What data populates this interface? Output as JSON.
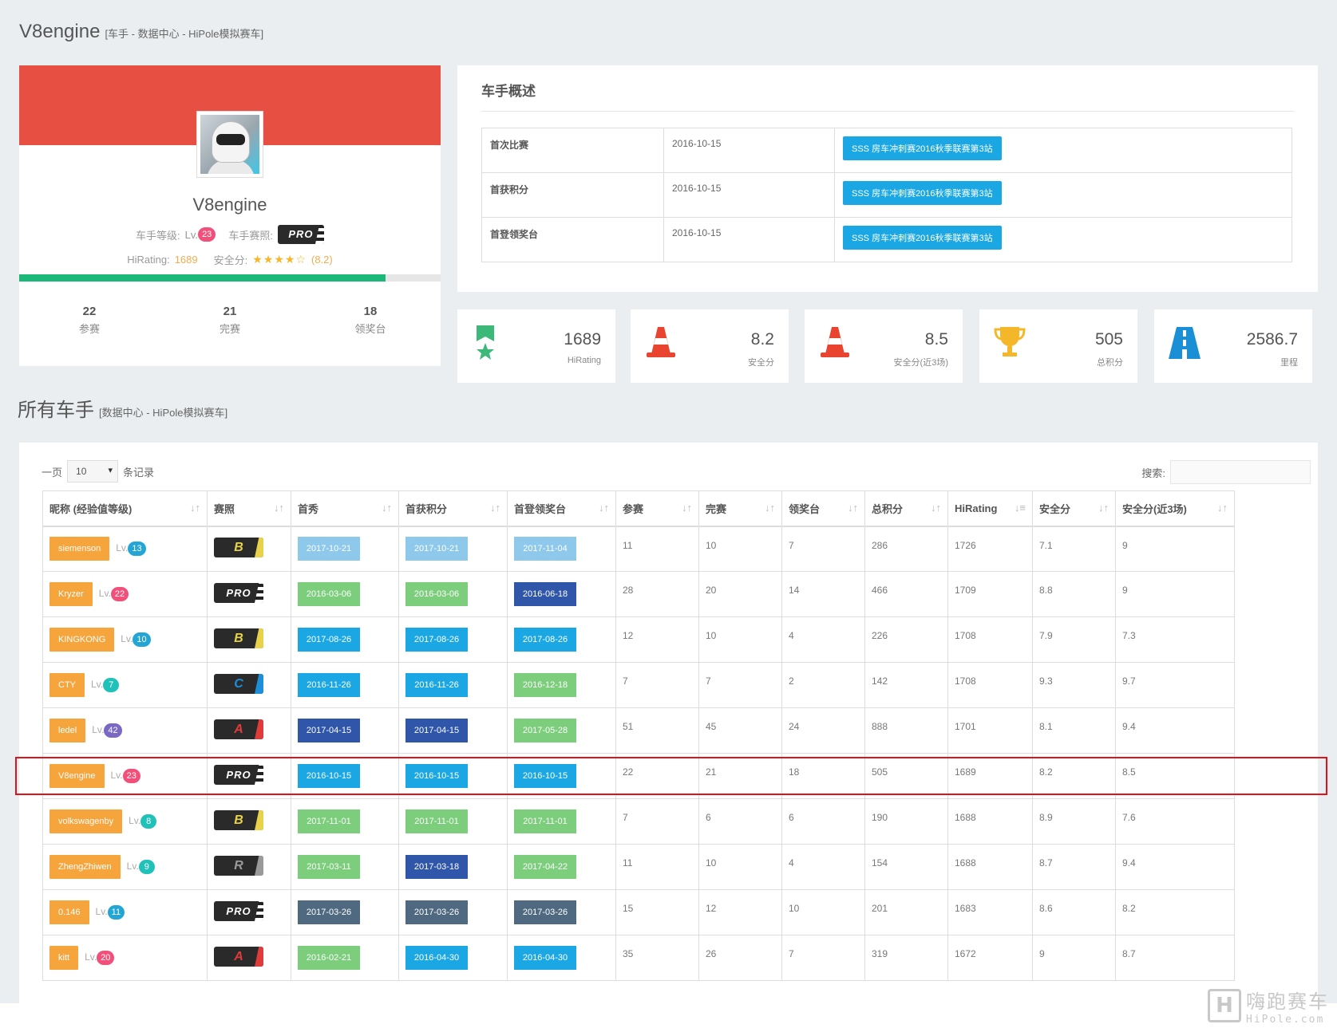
{
  "header": {
    "title": "V8engine",
    "subtitle": "[车手 - 数据中心 - HiPole模拟赛车]"
  },
  "profile": {
    "name": "V8engine",
    "level_label": "车手等级:",
    "lv_prefix": "Lv.",
    "level": "23",
    "license_label": "车手赛照:",
    "license": "PRO",
    "hirating_label": "HiRating:",
    "hirating": "1689",
    "safety_label": "安全分:",
    "safety_stars": "★★★★☆",
    "safety_value": "(8.2)",
    "progress": 0.87,
    "stats": [
      {
        "value": "22",
        "label": "参赛"
      },
      {
        "value": "21",
        "label": "完赛"
      },
      {
        "value": "18",
        "label": "领奖台"
      }
    ]
  },
  "overview": {
    "title": "车手概述",
    "rows": [
      {
        "key": "首次比赛",
        "date": "2016-10-15",
        "event": "SSS 房车冲刺赛2016秋季联赛第3站"
      },
      {
        "key": "首获积分",
        "date": "2016-10-15",
        "event": "SSS 房车冲刺赛2016秋季联赛第3站"
      },
      {
        "key": "首登领奖台",
        "date": "2016-10-15",
        "event": "SSS 房车冲刺赛2016秋季联赛第3站"
      }
    ]
  },
  "cards": [
    {
      "icon": "medal-icon",
      "value": "1689",
      "label": "HiRating"
    },
    {
      "icon": "traffic-cone-icon",
      "value": "8.2",
      "label": "安全分"
    },
    {
      "icon": "traffic-cone-icon",
      "value": "8.5",
      "label": "安全分(近3场)"
    },
    {
      "icon": "trophy-icon",
      "value": "505",
      "label": "总积分"
    },
    {
      "icon": "road-icon",
      "value": "2586.7",
      "label": "里程"
    }
  ],
  "section": {
    "title": "所有车手",
    "subtitle": "[数据中心 - HiPole模拟赛车]"
  },
  "controls": {
    "per_page_prefix": "一页",
    "per_page_value": "10",
    "per_page_suffix": "条记录",
    "search_label": "搜索:"
  },
  "table": {
    "columns": [
      "昵称 (经验值等级)",
      "赛照",
      "首秀",
      "首获积分",
      "首登领奖台",
      "参赛",
      "完赛",
      "领奖台",
      "总积分",
      "HiRating",
      "安全分",
      "安全分(近3场)"
    ],
    "sort_icons": [
      "↓↑",
      "↓↑",
      "↓↑",
      "↓↑",
      "↓↑",
      "↓↑",
      "↓↑",
      "↓↑",
      "↓↑",
      "↓≡",
      "↓↑",
      "↓↑"
    ],
    "rows": [
      {
        "name": "siemenson",
        "lv": "13",
        "lvcolor": "#23a6d5",
        "license": "B",
        "d1": "2017-10-21",
        "c1": "#8ec8ea",
        "d2": "2017-10-21",
        "c2": "#8ec8ea",
        "d3": "2017-11-04",
        "c3": "#8ec8ea",
        "races": "11",
        "finished": "10",
        "podiums": "7",
        "points": "286",
        "hirating": "1726",
        "safety": "7.1",
        "safety3": "9"
      },
      {
        "name": "Kryzer",
        "lv": "22",
        "lvcolor": "#f0507a",
        "license": "PRO",
        "d1": "2016-03-06",
        "c1": "#7ccd7c",
        "d2": "2016-03-06",
        "c2": "#7ccd7c",
        "d3": "2016-06-18",
        "c3": "#2f56a8",
        "races": "28",
        "finished": "20",
        "podiums": "14",
        "points": "466",
        "hirating": "1709",
        "safety": "8.8",
        "safety3": "9"
      },
      {
        "name": "KINGKONG",
        "lv": "10",
        "lvcolor": "#23a6d5",
        "license": "B",
        "d1": "2017-08-26",
        "c1": "#1aa7e3",
        "d2": "2017-08-26",
        "c2": "#1aa7e3",
        "d3": "2017-08-26",
        "c3": "#1aa7e3",
        "races": "12",
        "finished": "10",
        "podiums": "4",
        "points": "226",
        "hirating": "1708",
        "safety": "7.9",
        "safety3": "7.3"
      },
      {
        "name": "CTY",
        "lv": "7",
        "lvcolor": "#20c1b8",
        "license": "C",
        "d1": "2016-11-26",
        "c1": "#1aa7e3",
        "d2": "2016-11-26",
        "c2": "#1aa7e3",
        "d3": "2016-12-18",
        "c3": "#7ccd7c",
        "races": "7",
        "finished": "7",
        "podiums": "2",
        "points": "142",
        "hirating": "1708",
        "safety": "9.3",
        "safety3": "9.7"
      },
      {
        "name": "ledel",
        "lv": "42",
        "lvcolor": "#7a68c4",
        "license": "A",
        "d1": "2017-04-15",
        "c1": "#2f56a8",
        "d2": "2017-04-15",
        "c2": "#2f56a8",
        "d3": "2017-05-28",
        "c3": "#7ccd7c",
        "races": "51",
        "finished": "45",
        "podiums": "24",
        "points": "888",
        "hirating": "1701",
        "safety": "8.1",
        "safety3": "9.4"
      },
      {
        "name": "V8engine",
        "lv": "23",
        "lvcolor": "#f0507a",
        "license": "PRO",
        "d1": "2016-10-15",
        "c1": "#1aa7e3",
        "d2": "2016-10-15",
        "c2": "#1aa7e3",
        "d3": "2016-10-15",
        "c3": "#1aa7e3",
        "races": "22",
        "finished": "21",
        "podiums": "18",
        "points": "505",
        "hirating": "1689",
        "safety": "8.2",
        "safety3": "8.5"
      },
      {
        "name": "volkswagenby",
        "lv": "8",
        "lvcolor": "#20c1b8",
        "license": "B",
        "d1": "2017-11-01",
        "c1": "#7ccd7c",
        "d2": "2017-11-01",
        "c2": "#7ccd7c",
        "d3": "2017-11-01",
        "c3": "#7ccd7c",
        "races": "7",
        "finished": "6",
        "podiums": "6",
        "points": "190",
        "hirating": "1688",
        "safety": "8.9",
        "safety3": "7.6"
      },
      {
        "name": "ZhengZhiwen",
        "lv": "9",
        "lvcolor": "#20c1b8",
        "license": "R",
        "d1": "2017-03-11",
        "c1": "#7ccd7c",
        "d2": "2017-03-18",
        "c2": "#2f56a8",
        "d3": "2017-04-22",
        "c3": "#7ccd7c",
        "races": "11",
        "finished": "10",
        "podiums": "4",
        "points": "154",
        "hirating": "1688",
        "safety": "8.7",
        "safety3": "9.4"
      },
      {
        "name": "0.146",
        "lv": "11",
        "lvcolor": "#23a6d5",
        "license": "PRO",
        "d1": "2017-03-26",
        "c1": "#4f6a80",
        "d2": "2017-03-26",
        "c2": "#4f6a80",
        "d3": "2017-03-26",
        "c3": "#4f6a80",
        "races": "15",
        "finished": "12",
        "podiums": "10",
        "points": "201",
        "hirating": "1683",
        "safety": "8.6",
        "safety3": "8.2"
      },
      {
        "name": "kitt",
        "lv": "20",
        "lvcolor": "#f0507a",
        "license": "A",
        "d1": "2016-02-21",
        "c1": "#7ccd7c",
        "d2": "2016-04-30",
        "c2": "#1aa7e3",
        "d3": "2016-04-30",
        "c3": "#1aa7e3",
        "races": "35",
        "finished": "26",
        "podiums": "7",
        "points": "319",
        "hirating": "1672",
        "safety": "9",
        "safety3": "8.7"
      }
    ]
  },
  "license_colors": {
    "B": "#e8d24a",
    "C": "#1c8fd8",
    "A": "#e03b3b",
    "R": "#9a9a9a",
    "PRO": "#ffffff"
  },
  "watermark": {
    "logo": "H",
    "cn": "嗨跑赛车",
    "en": "HiPole.com"
  }
}
